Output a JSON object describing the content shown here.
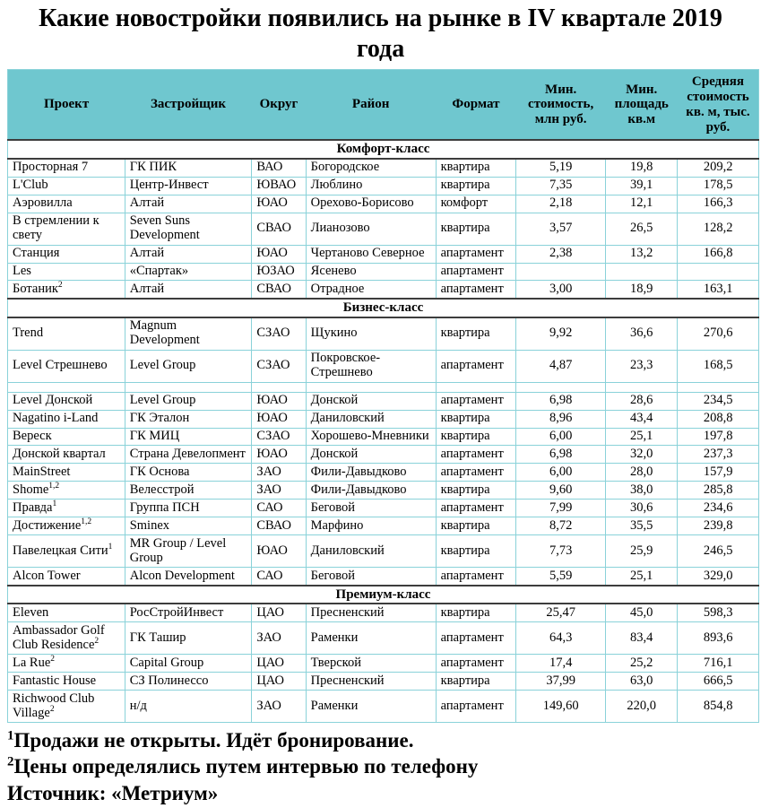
{
  "title": "Какие новостройки появились на рынке в IV квартале 2019 года",
  "table": {
    "columns": [
      "Проект",
      "Застройщик",
      "Округ",
      "Район",
      "Формат",
      "Мин. стоимость, млн руб.",
      "Мин. площадь кв.м",
      "Средняя стоимость кв. м, тыс. руб."
    ],
    "sections": [
      {
        "label": "Комфорт-класс",
        "rows": [
          {
            "project": "Просторная 7",
            "project_sup": "",
            "developer": "ГК ПИК",
            "okrug": "ВАО",
            "raion": "Богородское",
            "format": "квартира",
            "min_price": "5,19",
            "min_area": "19,8",
            "avg_price": "209,2"
          },
          {
            "project": "L'Club",
            "project_sup": "",
            "developer": "Центр-Инвест",
            "okrug": "ЮВАО",
            "raion": "Люблино",
            "format": "квартира",
            "min_price": "7,35",
            "min_area": "39,1",
            "avg_price": "178,5"
          },
          {
            "project": "Аэровилла",
            "project_sup": "",
            "developer": "Алтай",
            "okrug": "ЮАО",
            "raion": "Орехово-Борисово",
            "format": "комфорт",
            "min_price": "2,18",
            "min_area": "12,1",
            "avg_price": "166,3"
          },
          {
            "project": "В стремлении к свету",
            "project_sup": "",
            "developer": "Seven Suns Development",
            "okrug": "СВАО",
            "raion": "Лианозово",
            "format": "квартира",
            "min_price": "3,57",
            "min_area": "26,5",
            "avg_price": "128,2"
          },
          {
            "project": "Станция",
            "project_sup": "",
            "developer": "Алтай",
            "okrug": "ЮАО",
            "raion": "Чертаново Северное",
            "format": "апартамент",
            "min_price": "2,38",
            "min_area": "13,2",
            "avg_price": "166,8"
          },
          {
            "project": "Les",
            "project_sup": "",
            "developer": "«Спартак»",
            "okrug": "ЮЗАО",
            "raion": "Ясенево",
            "format": "апартамент",
            "min_price": "",
            "min_area": "",
            "avg_price": ""
          },
          {
            "project": "Ботаник",
            "project_sup": "2",
            "developer": "Алтай",
            "okrug": "СВАО",
            "raion": "Отрадное",
            "format": "апартамент",
            "min_price": "3,00",
            "min_area": "18,9",
            "avg_price": "163,1"
          }
        ]
      },
      {
        "label": "Бизнес-класс",
        "rows": [
          {
            "project": "Trend",
            "project_sup": "",
            "developer": "Magnum Development",
            "okrug": "СЗАО",
            "raion": "Щукино",
            "format": "квартира",
            "min_price": "9,92",
            "min_area": "36,6",
            "avg_price": "270,6"
          },
          {
            "project": "Level Стрешнево",
            "project_sup": "",
            "developer": "Level Group",
            "okrug": "СЗАО",
            "raion": "Покровское-Стрешнево",
            "format": "апартамент",
            "min_price": "4,87",
            "min_area": "23,3",
            "avg_price": "168,5"
          },
          {
            "project": "",
            "project_sup": "",
            "developer": "",
            "okrug": "",
            "raion": "",
            "format": "",
            "min_price": "",
            "min_area": "",
            "avg_price": "",
            "empty": true
          },
          {
            "project": "Level Донской",
            "project_sup": "",
            "developer": "Level Group",
            "okrug": "ЮАО",
            "raion": "Донской",
            "format": "апартамент",
            "min_price": "6,98",
            "min_area": "28,6",
            "avg_price": "234,5"
          },
          {
            "project": "Nagatino i-Land",
            "project_sup": "",
            "developer": "ГК Эталон",
            "okrug": "ЮАО",
            "raion": "Даниловский",
            "format": "квартира",
            "min_price": "8,96",
            "min_area": "43,4",
            "avg_price": "208,8"
          },
          {
            "project": "Вереск",
            "project_sup": "",
            "developer": "ГК МИЦ",
            "okrug": "СЗАО",
            "raion": "Хорошево-Мневники",
            "format": "квартира",
            "min_price": "6,00",
            "min_area": "25,1",
            "avg_price": "197,8"
          },
          {
            "project": "Донской квартал",
            "project_sup": "",
            "developer": "Страна Девелопмент",
            "okrug": "ЮАО",
            "raion": "Донской",
            "format": "апартамент",
            "min_price": "6,98",
            "min_area": "32,0",
            "avg_price": "237,3"
          },
          {
            "project": "MainStreet",
            "project_sup": "",
            "developer": "ГК Основа",
            "okrug": "ЗАО",
            "raion": "Фили-Давыдково",
            "format": "апартамент",
            "min_price": "6,00",
            "min_area": "28,0",
            "avg_price": "157,9"
          },
          {
            "project": "Shome",
            "project_sup": "1,2",
            "developer": "Велесстрой",
            "okrug": "ЗАО",
            "raion": "Фили-Давыдково",
            "format": "квартира",
            "min_price": "9,60",
            "min_area": "38,0",
            "avg_price": "285,8"
          },
          {
            "project": "Правда",
            "project_sup": "1",
            "developer": "Группа ПСН",
            "okrug": "САО",
            "raion": "Беговой",
            "format": "апартамент",
            "min_price": "7,99",
            "min_area": "30,6",
            "avg_price": "234,6"
          },
          {
            "project": "Достижение",
            "project_sup": "1,2",
            "developer": "Sminex",
            "okrug": "СВАО",
            "raion": "Марфино",
            "format": "квартира",
            "min_price": "8,72",
            "min_area": "35,5",
            "avg_price": "239,8"
          },
          {
            "project": "Павелецкая Сити",
            "project_sup": "1",
            "developer": "MR Group / Level Group",
            "okrug": "ЮАО",
            "raion": "Даниловский",
            "format": "квартира",
            "min_price": "7,73",
            "min_area": "25,9",
            "avg_price": "246,5"
          },
          {
            "project": "Alcon Tower",
            "project_sup": "",
            "developer": "Alcon Development",
            "okrug": "САО",
            "raion": "Беговой",
            "format": "апартамент",
            "min_price": "5,59",
            "min_area": "25,1",
            "avg_price": "329,0"
          }
        ]
      },
      {
        "label": "Премиум-класс",
        "rows": [
          {
            "project": "Eleven",
            "project_sup": "",
            "developer": "РосСтройИнвест",
            "okrug": "ЦАО",
            "raion": "Пресненский",
            "format": "квартира",
            "min_price": "25,47",
            "min_area": "45,0",
            "avg_price": "598,3"
          },
          {
            "project": "Ambassador Golf Club Residence",
            "project_sup": "2",
            "developer": "ГК Ташир",
            "okrug": "ЗАО",
            "raion": "Раменки",
            "format": "апартамент",
            "min_price": "64,3",
            "min_area": "83,4",
            "avg_price": "893,6"
          },
          {
            "project": "La Rue",
            "project_sup": "2",
            "developer": "Capital Group",
            "okrug": "ЦАО",
            "raion": "Тверской",
            "format": "апартамент",
            "min_price": "17,4",
            "min_area": "25,2",
            "avg_price": "716,1"
          },
          {
            "project": "Fantastic House",
            "project_sup": "",
            "developer": "СЗ Полинессо",
            "okrug": "ЦАО",
            "raion": "Пресненский",
            "format": "квартира",
            "min_price": "37,99",
            "min_area": "63,0",
            "avg_price": "666,5"
          },
          {
            "project": "Richwood Club Village",
            "project_sup": "2",
            "developer": "н/д",
            "okrug": "ЗАО",
            "raion": "Раменки",
            "format": "апартамент",
            "min_price": "149,60",
            "min_area": "220,0",
            "avg_price": "854,8"
          }
        ]
      }
    ]
  },
  "footnotes": [
    {
      "sup": "1",
      "text": "Продажи не открыты. Идёт бронирование."
    },
    {
      "sup": "2",
      "text": "Цены определялись путем интервью по телефону"
    },
    {
      "sup": "",
      "text": "Источник: «Метриум»"
    }
  ],
  "colors": {
    "header_bg": "#6fc7cf",
    "grid": "#8ad2d9",
    "section_border": "#3d3d3d",
    "text": "#000000"
  }
}
